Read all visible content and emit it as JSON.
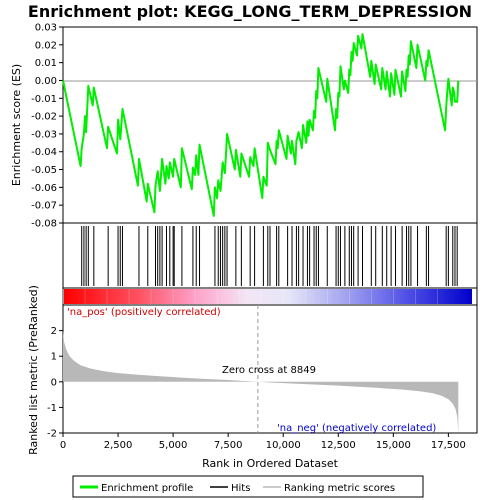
{
  "chart_data": {
    "type": "line",
    "title": "Enrichment plot: KEGG_LONG_TERM_DEPRESSION",
    "top_panel": {
      "ylabel": "Enrichment score (ES)",
      "ylim": [
        -0.08,
        0.03
      ],
      "yticks": [
        "0.03",
        "0.02",
        "0.01",
        "0.00",
        "-0.01",
        "-0.02",
        "-0.03",
        "-0.04",
        "-0.05",
        "-0.06",
        "-0.07",
        "-0.08"
      ],
      "ytick_values": [
        0.03,
        0.02,
        0.01,
        0.0,
        -0.01,
        -0.02,
        -0.03,
        -0.04,
        -0.05,
        -0.06,
        -0.07,
        -0.08
      ],
      "grid": false,
      "color": "#00ee00"
    },
    "bottom_panel": {
      "ylabel": "Ranked list metric (PreRanked)",
      "ylim": [
        -2,
        3
      ],
      "yticks": [
        "2",
        "1",
        "0",
        "-1",
        "-2"
      ],
      "ytick_values": [
        2,
        1,
        0,
        -1,
        -2
      ],
      "fill_color": "#b8b8b8"
    },
    "x_axis": {
      "xlabel": "Rank in Ordered Dataset",
      "xlim": [
        0,
        18800
      ],
      "xticks": [
        "0",
        "2,500",
        "5,000",
        "7,500",
        "10,000",
        "12,500",
        "15,000",
        "17,500"
      ],
      "xtick_values": [
        0,
        2500,
        5000,
        7500,
        10000,
        12500,
        15000,
        17500
      ]
    },
    "n_genes": 17950,
    "zero_cross_label": "Zero cross at 8849",
    "zero_cross": 8849,
    "pos_label": "'na_pos' (positively correlated)",
    "neg_label": "'na_neg' (negatively correlated)",
    "hits": [
      850,
      950,
      1050,
      1150,
      1400,
      2050,
      2500,
      2600,
      2700,
      3450,
      3850,
      4200,
      4300,
      4400,
      4500,
      4700,
      4850,
      5000,
      5050,
      5400,
      5900,
      6050,
      6200,
      6900,
      7050,
      7150,
      7250,
      7350,
      7450,
      7850,
      8100,
      8500,
      8700,
      9100,
      9300,
      9400,
      9700,
      9800,
      10200,
      10400,
      10600,
      10700,
      10900,
      11100,
      11200,
      11400,
      11500,
      11600,
      12000,
      12400,
      12500,
      12600,
      12800,
      13000,
      13100,
      13200,
      13400,
      13600,
      14000,
      14200,
      14500,
      14700,
      14900,
      15100,
      15400,
      15600,
      15700,
      15800,
      16100,
      16500,
      16600,
      17400,
      17500,
      17700,
      17800,
      17900
    ],
    "es_profile": [
      [
        0,
        0.0
      ],
      [
        800,
        -0.048
      ],
      [
        850,
        -0.038
      ],
      [
        950,
        -0.03
      ],
      [
        1000,
        -0.02
      ],
      [
        1050,
        -0.029
      ],
      [
        1150,
        -0.003
      ],
      [
        1350,
        -0.014
      ],
      [
        1400,
        -0.004
      ],
      [
        2000,
        -0.038
      ],
      [
        2050,
        -0.026
      ],
      [
        2450,
        -0.041
      ],
      [
        2500,
        -0.022
      ],
      [
        2600,
        -0.033
      ],
      [
        2700,
        -0.016
      ],
      [
        3400,
        -0.059
      ],
      [
        3450,
        -0.044
      ],
      [
        3800,
        -0.068
      ],
      [
        3850,
        -0.058
      ],
      [
        4150,
        -0.074
      ],
      [
        4200,
        -0.059
      ],
      [
        4300,
        -0.051
      ],
      [
        4400,
        -0.062
      ],
      [
        4500,
        -0.044
      ],
      [
        4650,
        -0.058
      ],
      [
        4700,
        -0.048
      ],
      [
        4800,
        -0.055
      ],
      [
        4850,
        -0.046
      ],
      [
        5000,
        -0.054
      ],
      [
        5050,
        -0.044
      ],
      [
        5350,
        -0.06
      ],
      [
        5400,
        -0.038
      ],
      [
        5850,
        -0.061
      ],
      [
        5900,
        -0.049
      ],
      [
        6000,
        -0.053
      ],
      [
        6050,
        -0.042
      ],
      [
        6150,
        -0.053
      ],
      [
        6200,
        -0.036
      ],
      [
        6850,
        -0.076
      ],
      [
        6900,
        -0.06
      ],
      [
        7000,
        -0.066
      ],
      [
        7050,
        -0.056
      ],
      [
        7150,
        -0.062
      ],
      [
        7250,
        -0.046
      ],
      [
        7350,
        -0.052
      ],
      [
        7450,
        -0.03
      ],
      [
        7800,
        -0.05
      ],
      [
        7850,
        -0.039
      ],
      [
        8050,
        -0.054
      ],
      [
        8100,
        -0.041
      ],
      [
        8450,
        -0.054
      ],
      [
        8500,
        -0.043
      ],
      [
        8650,
        -0.048
      ],
      [
        8700,
        -0.038
      ],
      [
        9050,
        -0.066
      ],
      [
        9100,
        -0.054
      ],
      [
        9250,
        -0.059
      ],
      [
        9300,
        -0.035
      ],
      [
        9400,
        -0.039
      ],
      [
        9650,
        -0.047
      ],
      [
        9700,
        -0.034
      ],
      [
        9750,
        -0.038
      ],
      [
        9800,
        -0.028
      ],
      [
        10150,
        -0.044
      ],
      [
        10200,
        -0.031
      ],
      [
        10350,
        -0.041
      ],
      [
        10400,
        -0.034
      ],
      [
        10550,
        -0.047
      ],
      [
        10600,
        -0.034
      ],
      [
        10700,
        -0.029
      ],
      [
        10850,
        -0.038
      ],
      [
        10900,
        -0.025
      ],
      [
        11050,
        -0.035
      ],
      [
        11100,
        -0.023
      ],
      [
        11150,
        -0.031
      ],
      [
        11200,
        -0.022
      ],
      [
        11350,
        -0.028
      ],
      [
        11400,
        -0.017
      ],
      [
        11450,
        -0.021
      ],
      [
        11500,
        -0.006
      ],
      [
        11550,
        -0.01
      ],
      [
        11600,
        0.007
      ],
      [
        11950,
        -0.012
      ],
      [
        12000,
        0.001
      ],
      [
        12350,
        -0.028
      ],
      [
        12400,
        -0.016
      ],
      [
        12450,
        -0.021
      ],
      [
        12500,
        -0.007
      ],
      [
        12550,
        -0.009
      ],
      [
        12600,
        0.008
      ],
      [
        12750,
        -0.005
      ],
      [
        12800,
        0.0
      ],
      [
        12950,
        -0.007
      ],
      [
        13000,
        0.006
      ],
      [
        13050,
        0.003
      ],
      [
        13100,
        0.016
      ],
      [
        13150,
        0.011
      ],
      [
        13200,
        0.021
      ],
      [
        13350,
        0.014
      ],
      [
        13400,
        0.025
      ],
      [
        13550,
        0.018
      ],
      [
        13600,
        0.026
      ],
      [
        13950,
        0.002
      ],
      [
        14000,
        0.011
      ],
      [
        14150,
        -0.002
      ],
      [
        14200,
        0.009
      ],
      [
        14450,
        -0.005
      ],
      [
        14500,
        0.007
      ],
      [
        14650,
        -0.005
      ],
      [
        14700,
        0.005
      ],
      [
        14850,
        -0.009
      ],
      [
        14900,
        0.004
      ],
      [
        15050,
        -0.008
      ],
      [
        15100,
        0.006
      ],
      [
        15350,
        -0.009
      ],
      [
        15400,
        0.005
      ],
      [
        15550,
        -0.006
      ],
      [
        15600,
        0.006
      ],
      [
        15650,
        0.002
      ],
      [
        15700,
        0.014
      ],
      [
        15750,
        0.009
      ],
      [
        15800,
        0.022
      ],
      [
        16050,
        0.007
      ],
      [
        16100,
        0.02
      ],
      [
        16450,
        0.0
      ],
      [
        16500,
        0.011
      ],
      [
        16550,
        0.008
      ],
      [
        16600,
        0.017
      ],
      [
        17350,
        -0.028
      ],
      [
        17400,
        -0.015
      ],
      [
        17450,
        -0.006
      ],
      [
        17500,
        0.001
      ],
      [
        17650,
        -0.014
      ],
      [
        17700,
        -0.004
      ],
      [
        17750,
        -0.006
      ],
      [
        17800,
        -0.012
      ],
      [
        17900,
        -0.012
      ],
      [
        17950,
        0.0
      ]
    ],
    "metric_profile": [
      [
        0,
        2.0
      ],
      [
        50,
        1.55
      ],
      [
        150,
        1.25
      ],
      [
        300,
        1.0
      ],
      [
        500,
        0.82
      ],
      [
        800,
        0.65
      ],
      [
        1200,
        0.53
      ],
      [
        1800,
        0.42
      ],
      [
        2500,
        0.34
      ],
      [
        3500,
        0.27
      ],
      [
        4500,
        0.21
      ],
      [
        5500,
        0.16
      ],
      [
        6500,
        0.11
      ],
      [
        7500,
        0.07
      ],
      [
        8200,
        0.03
      ],
      [
        8849,
        0.0
      ],
      [
        9500,
        -0.03
      ],
      [
        10500,
        -0.07
      ],
      [
        11500,
        -0.11
      ],
      [
        12500,
        -0.15
      ],
      [
        13500,
        -0.2
      ],
      [
        14500,
        -0.25
      ],
      [
        15500,
        -0.31
      ],
      [
        16200,
        -0.37
      ],
      [
        16800,
        -0.45
      ],
      [
        17200,
        -0.55
      ],
      [
        17500,
        -0.68
      ],
      [
        17700,
        -0.85
      ],
      [
        17820,
        -1.05
      ],
      [
        17900,
        -1.35
      ],
      [
        17950,
        -1.95
      ]
    ]
  },
  "legend": {
    "items": [
      {
        "label": "Enrichment profile",
        "color": "#00ee00"
      },
      {
        "label": "Hits",
        "color": "#000000"
      },
      {
        "label": "Ranking metric scores",
        "color": "#b8b8b8"
      }
    ]
  }
}
